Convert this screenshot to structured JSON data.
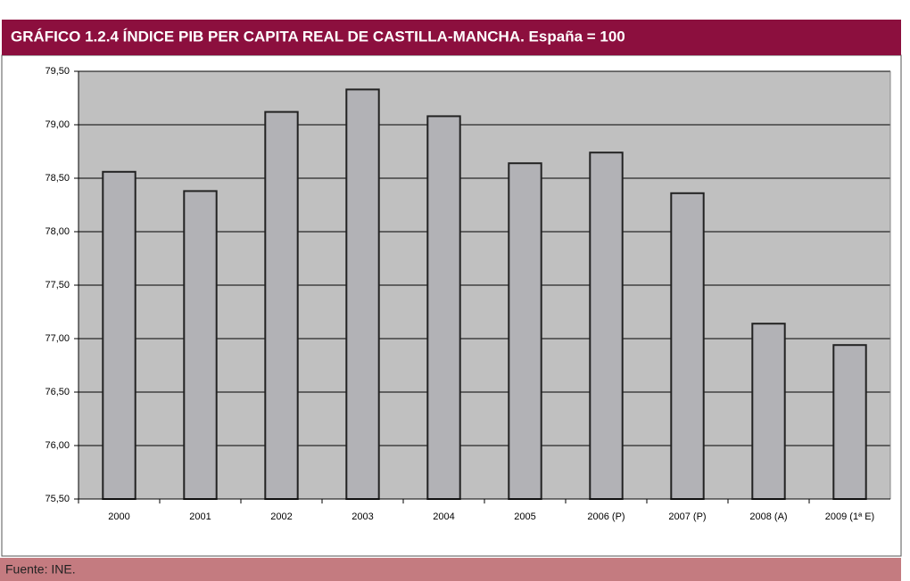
{
  "chart_data": {
    "type": "bar",
    "title": "GRÁFICO 1.2.4 ÍNDICE PIB PER CAPITA REAL DE CASTILLA-MANCHA. España = 100",
    "source": "Fuente: INE.",
    "categories": [
      "2000",
      "2001",
      "2002",
      "2003",
      "2004",
      "2005",
      "2006 (P)",
      "2007 (P)",
      "2008 (A)",
      "2009 (1ª E)"
    ],
    "values": [
      78.56,
      78.38,
      79.12,
      79.33,
      79.08,
      78.64,
      78.74,
      78.36,
      77.14,
      76.94
    ],
    "color": "#b2b2b6",
    "ylim": [
      75.5,
      79.5
    ],
    "yticks": [
      {
        "value": 75.5,
        "label": "75,50"
      },
      {
        "value": 76,
        "label": "76,00"
      },
      {
        "value": 76.5,
        "label": "76,50"
      },
      {
        "value": 77,
        "label": "77,00"
      },
      {
        "value": 77.5,
        "label": "77,50"
      },
      {
        "value": 78,
        "label": "78,00"
      },
      {
        "value": 78.5,
        "label": "78,50"
      },
      {
        "value": 79,
        "label": "79,00"
      },
      {
        "value": 79.5,
        "label": "79,50"
      }
    ],
    "grid": true
  }
}
